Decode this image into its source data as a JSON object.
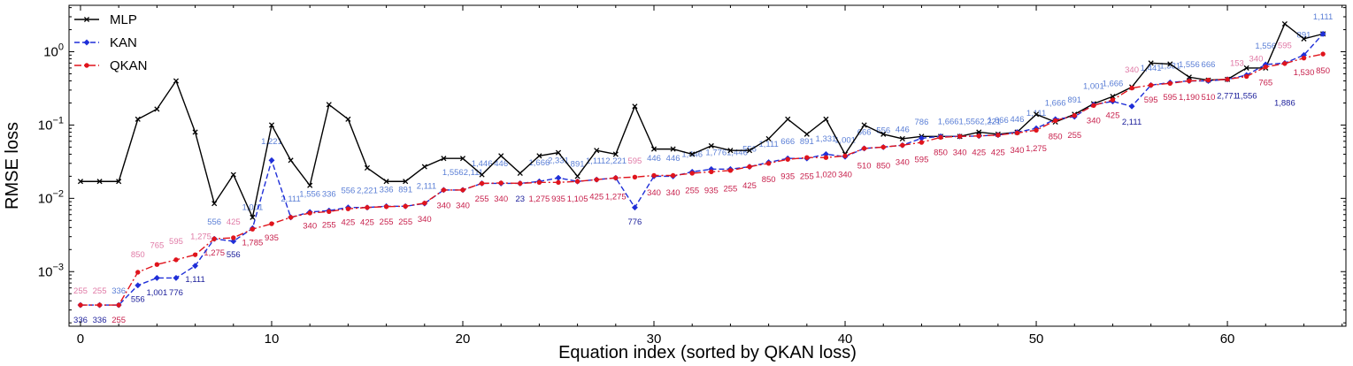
{
  "chart_data": {
    "type": "line",
    "xlabel": "Equation index (sorted by QKAN loss)",
    "ylabel": "RMSE loss",
    "yscale": "log",
    "xlim": [
      -0.6,
      66.2
    ],
    "ylim": [
      0.00018,
      4.3
    ],
    "xticks": [
      0,
      10,
      20,
      30,
      40,
      50,
      60
    ],
    "xtick_labels": [
      "0",
      "10",
      "20",
      "30",
      "40",
      "50",
      "60"
    ],
    "yticks": [
      0.001,
      0.01,
      0.1,
      1
    ],
    "ytick_labels": [
      "10^-3",
      "10^-2",
      "10^-1",
      "10^0"
    ],
    "legend_position": "top-left",
    "series": [
      {
        "name": "MLP",
        "color": "#000000",
        "dash": "",
        "marker": "x",
        "values": [
          0.017,
          0.017,
          0.017,
          0.12,
          0.165,
          0.4,
          0.08,
          0.0085,
          0.021,
          0.0055,
          0.1,
          0.033,
          0.015,
          0.19,
          0.12,
          0.026,
          0.017,
          0.017,
          0.027,
          0.035,
          0.035,
          0.021,
          0.038,
          0.022,
          0.038,
          0.042,
          0.02,
          0.045,
          0.04,
          0.18,
          0.047,
          0.047,
          0.04,
          0.052,
          0.045,
          0.045,
          0.065,
          0.12,
          0.075,
          0.12,
          0.04,
          0.1,
          0.075,
          0.065,
          0.07,
          0.07,
          0.07,
          0.08,
          0.075,
          0.08,
          0.14,
          0.11,
          0.14,
          0.195,
          0.245,
          0.33,
          0.7,
          0.68,
          0.45,
          0.41,
          0.42,
          0.6,
          0.6,
          2.4,
          1.5,
          1.75
        ]
      },
      {
        "name": "KAN",
        "color": "#1f2fd8",
        "dash": "6 3",
        "marker": "diamond",
        "values": [
          0.00035,
          0.00035,
          0.00035,
          0.00065,
          0.00082,
          0.00082,
          0.0012,
          0.0028,
          0.0026,
          0.0039,
          0.033,
          0.0055,
          0.0065,
          0.0068,
          0.0075,
          0.0075,
          0.0078,
          0.0078,
          0.0085,
          0.013,
          0.013,
          0.016,
          0.016,
          0.016,
          0.017,
          0.019,
          0.017,
          0.018,
          0.019,
          0.0075,
          0.02,
          0.02,
          0.023,
          0.025,
          0.025,
          0.027,
          0.031,
          0.035,
          0.035,
          0.04,
          0.037,
          0.048,
          0.05,
          0.053,
          0.066,
          0.07,
          0.07,
          0.071,
          0.073,
          0.08,
          0.09,
          0.12,
          0.13,
          0.19,
          0.21,
          0.18,
          0.35,
          0.38,
          0.4,
          0.4,
          0.42,
          0.48,
          0.67,
          0.7,
          0.9,
          1.75
        ]
      },
      {
        "name": "QKAN",
        "color": "#e0141c",
        "dash": "8 3 2 3",
        "marker": "circle",
        "values": [
          0.00035,
          0.00035,
          0.00035,
          0.00098,
          0.00125,
          0.00145,
          0.0017,
          0.0028,
          0.0029,
          0.0038,
          0.0045,
          0.0055,
          0.0063,
          0.0066,
          0.0072,
          0.0075,
          0.0077,
          0.0078,
          0.0086,
          0.013,
          0.013,
          0.016,
          0.0162,
          0.016,
          0.0165,
          0.0165,
          0.017,
          0.018,
          0.019,
          0.0195,
          0.0205,
          0.0205,
          0.022,
          0.023,
          0.024,
          0.027,
          0.03,
          0.034,
          0.036,
          0.036,
          0.038,
          0.048,
          0.05,
          0.053,
          0.058,
          0.068,
          0.07,
          0.071,
          0.073,
          0.078,
          0.085,
          0.115,
          0.135,
          0.185,
          0.22,
          0.32,
          0.35,
          0.37,
          0.4,
          0.41,
          0.42,
          0.46,
          0.62,
          0.69,
          0.82,
          0.93
        ]
      }
    ],
    "annotations": [
      {
        "text": "255",
        "x": 0,
        "y": 0.00055,
        "color": "#e07aa6"
      },
      {
        "text": "255",
        "x": 1,
        "y": 0.00055,
        "color": "#e07aa6"
      },
      {
        "text": "336",
        "x": 2,
        "y": 0.00055,
        "color": "#5b7fd6"
      },
      {
        "text": "850",
        "x": 3,
        "y": 0.0017,
        "color": "#e07aa6"
      },
      {
        "text": "765",
        "x": 4,
        "y": 0.0023,
        "color": "#e07aa6"
      },
      {
        "text": "595",
        "x": 5,
        "y": 0.0026,
        "color": "#e07aa6"
      },
      {
        "text": "1,275",
        "x": 6.3,
        "y": 0.003,
        "color": "#e07aa6"
      },
      {
        "text": "556",
        "x": 7,
        "y": 0.0048,
        "color": "#5b7fd6"
      },
      {
        "text": "425",
        "x": 8,
        "y": 0.0048,
        "color": "#e07aa6"
      },
      {
        "text": "1,001",
        "x": 9,
        "y": 0.0075,
        "color": "#5b7fd6"
      },
      {
        "text": "1,221",
        "x": 10,
        "y": 0.06,
        "color": "#5b7fd6"
      },
      {
        "text": "2,111",
        "x": 11,
        "y": 0.0098,
        "color": "#5b7fd6"
      },
      {
        "text": "1,556",
        "x": 12,
        "y": 0.0115,
        "color": "#5b7fd6"
      },
      {
        "text": "336",
        "x": 13,
        "y": 0.0115,
        "color": "#5b7fd6"
      },
      {
        "text": "556",
        "x": 14,
        "y": 0.0128,
        "color": "#5b7fd6"
      },
      {
        "text": "2,221",
        "x": 15,
        "y": 0.0128,
        "color": "#5b7fd6"
      },
      {
        "text": "336",
        "x": 16,
        "y": 0.0132,
        "color": "#5b7fd6"
      },
      {
        "text": "891",
        "x": 17,
        "y": 0.0132,
        "color": "#5b7fd6"
      },
      {
        "text": "2,111",
        "x": 18.1,
        "y": 0.0146,
        "color": "#5b7fd6"
      },
      {
        "text": "1,5562,111",
        "x": 20,
        "y": 0.0225,
        "color": "#5b7fd6"
      },
      {
        "text": "1,446",
        "x": 21,
        "y": 0.03,
        "color": "#5b7fd6"
      },
      {
        "text": "446",
        "x": 22,
        "y": 0.03,
        "color": "#5b7fd6"
      },
      {
        "text": "1,666",
        "x": 24,
        "y": 0.0305,
        "color": "#5b7fd6"
      },
      {
        "text": "2,331",
        "x": 25,
        "y": 0.033,
        "color": "#5b7fd6"
      },
      {
        "text": "891",
        "x": 26,
        "y": 0.0295,
        "color": "#5b7fd6"
      },
      {
        "text": "1,1112,221",
        "x": 27.5,
        "y": 0.0325,
        "color": "#5b7fd6"
      },
      {
        "text": "595",
        "x": 29,
        "y": 0.0325,
        "color": "#e07aa6"
      },
      {
        "text": "446",
        "x": 30,
        "y": 0.035,
        "color": "#5b7fd6"
      },
      {
        "text": "446",
        "x": 31,
        "y": 0.035,
        "color": "#5b7fd6"
      },
      {
        "text": "1,446",
        "x": 32,
        "y": 0.04,
        "color": "#5b7fd6"
      },
      {
        "text": "1,7761,446",
        "x": 33.8,
        "y": 0.042,
        "color": "#5b7fd6"
      },
      {
        "text": "556",
        "x": 35,
        "y": 0.047,
        "color": "#5b7fd6"
      },
      {
        "text": "1,111",
        "x": 36,
        "y": 0.055,
        "color": "#5b7fd6"
      },
      {
        "text": "666",
        "x": 37,
        "y": 0.06,
        "color": "#5b7fd6"
      },
      {
        "text": "891",
        "x": 38,
        "y": 0.06,
        "color": "#5b7fd6"
      },
      {
        "text": "1,331",
        "x": 39,
        "y": 0.065,
        "color": "#5b7fd6"
      },
      {
        "text": "1,001",
        "x": 40,
        "y": 0.062,
        "color": "#5b7fd6"
      },
      {
        "text": "666",
        "x": 41,
        "y": 0.08,
        "color": "#5b7fd6"
      },
      {
        "text": "556",
        "x": 42,
        "y": 0.085,
        "color": "#5b7fd6"
      },
      {
        "text": "446",
        "x": 43,
        "y": 0.087,
        "color": "#5b7fd6"
      },
      {
        "text": "786",
        "x": 44,
        "y": 0.11,
        "color": "#5b7fd6"
      },
      {
        "text": "1,6661,5562,221",
        "x": 46.5,
        "y": 0.112,
        "color": "#5b7fd6"
      },
      {
        "text": "1,666",
        "x": 48,
        "y": 0.116,
        "color": "#5b7fd6"
      },
      {
        "text": "446",
        "x": 49,
        "y": 0.12,
        "color": "#5b7fd6"
      },
      {
        "text": "1,111",
        "x": 50,
        "y": 0.145,
        "color": "#5b7fd6"
      },
      {
        "text": "1,666",
        "x": 51,
        "y": 0.2,
        "color": "#5b7fd6"
      },
      {
        "text": "891",
        "x": 52,
        "y": 0.22,
        "color": "#5b7fd6"
      },
      {
        "text": "1,001",
        "x": 53,
        "y": 0.34,
        "color": "#5b7fd6"
      },
      {
        "text": "1,666",
        "x": 54,
        "y": 0.37,
        "color": "#5b7fd6"
      },
      {
        "text": "340",
        "x": 55,
        "y": 0.57,
        "color": "#e07aa6"
      },
      {
        "text": "1,441",
        "x": 56,
        "y": 0.6,
        "color": "#5b7fd6"
      },
      {
        "text": "1,331",
        "x": 57,
        "y": 0.64,
        "color": "#5b7fd6"
      },
      {
        "text": "1,556",
        "x": 58,
        "y": 0.67,
        "color": "#5b7fd6"
      },
      {
        "text": "666",
        "x": 59,
        "y": 0.67,
        "color": "#5b7fd6"
      },
      {
        "text": "153",
        "x": 60.5,
        "y": 0.7,
        "color": "#e07aa6"
      },
      {
        "text": "340",
        "x": 61.5,
        "y": 0.8,
        "color": "#e07aa6"
      },
      {
        "text": "1,556",
        "x": 62,
        "y": 1.2,
        "color": "#5b7fd6"
      },
      {
        "text": "595",
        "x": 63,
        "y": 1.22,
        "color": "#e07aa6"
      },
      {
        "text": "891",
        "x": 64,
        "y": 1.7,
        "color": "#5b7fd6"
      },
      {
        "text": "1,111",
        "x": 65,
        "y": 3.0,
        "color": "#5b7fd6"
      },
      {
        "text": "336",
        "x": 0,
        "y": 0.00022,
        "color": "#1a1d9a"
      },
      {
        "text": "336",
        "x": 1,
        "y": 0.00022,
        "color": "#1a1d9a"
      },
      {
        "text": "255",
        "x": 2,
        "y": 0.00022,
        "color": "#c71f4b"
      },
      {
        "text": "556",
        "x": 3,
        "y": 0.00042,
        "color": "#1a1d9a"
      },
      {
        "text": "1,001",
        "x": 4,
        "y": 0.00052,
        "color": "#1a1d9a"
      },
      {
        "text": "776",
        "x": 5,
        "y": 0.00052,
        "color": "#1a1d9a"
      },
      {
        "text": "1,111",
        "x": 6,
        "y": 0.00078,
        "color": "#1a1d9a"
      },
      {
        "text": "1,275",
        "x": 7,
        "y": 0.0018,
        "color": "#c71f4b"
      },
      {
        "text": "556",
        "x": 8,
        "y": 0.0017,
        "color": "#1a1d9a"
      },
      {
        "text": "1,785",
        "x": 9,
        "y": 0.0025,
        "color": "#c71f4b"
      },
      {
        "text": "935",
        "x": 10,
        "y": 0.0029,
        "color": "#c71f4b"
      },
      {
        "text": "340",
        "x": 12,
        "y": 0.0042,
        "color": "#c71f4b"
      },
      {
        "text": "255",
        "x": 13,
        "y": 0.0043,
        "color": "#c71f4b"
      },
      {
        "text": "425",
        "x": 14,
        "y": 0.0047,
        "color": "#c71f4b"
      },
      {
        "text": "425",
        "x": 15,
        "y": 0.0047,
        "color": "#c71f4b"
      },
      {
        "text": "255",
        "x": 16,
        "y": 0.0048,
        "color": "#c71f4b"
      },
      {
        "text": "255",
        "x": 17,
        "y": 0.0048,
        "color": "#c71f4b"
      },
      {
        "text": "340",
        "x": 18,
        "y": 0.0052,
        "color": "#c71f4b"
      },
      {
        "text": "340",
        "x": 19,
        "y": 0.008,
        "color": "#c71f4b"
      },
      {
        "text": "340",
        "x": 20,
        "y": 0.008,
        "color": "#c71f4b"
      },
      {
        "text": "255",
        "x": 21,
        "y": 0.0098,
        "color": "#c71f4b"
      },
      {
        "text": "340",
        "x": 22,
        "y": 0.0098,
        "color": "#c71f4b"
      },
      {
        "text": "23",
        "x": 23,
        "y": 0.0098,
        "color": "#1a1d9a"
      },
      {
        "text": "1,275",
        "x": 24,
        "y": 0.0098,
        "color": "#c71f4b"
      },
      {
        "text": "935",
        "x": 25,
        "y": 0.0098,
        "color": "#c71f4b"
      },
      {
        "text": "1,105",
        "x": 26,
        "y": 0.0098,
        "color": "#c71f4b"
      },
      {
        "text": "425",
        "x": 27,
        "y": 0.0105,
        "color": "#c71f4b"
      },
      {
        "text": "1,275",
        "x": 28,
        "y": 0.0105,
        "color": "#c71f4b"
      },
      {
        "text": "776",
        "x": 29,
        "y": 0.0048,
        "color": "#1a1d9a"
      },
      {
        "text": "340",
        "x": 30,
        "y": 0.012,
        "color": "#c71f4b"
      },
      {
        "text": "340",
        "x": 31,
        "y": 0.012,
        "color": "#c71f4b"
      },
      {
        "text": "255",
        "x": 32,
        "y": 0.0128,
        "color": "#c71f4b"
      },
      {
        "text": "935",
        "x": 33,
        "y": 0.0128,
        "color": "#c71f4b"
      },
      {
        "text": "255",
        "x": 34,
        "y": 0.0135,
        "color": "#c71f4b"
      },
      {
        "text": "425",
        "x": 35,
        "y": 0.0148,
        "color": "#c71f4b"
      },
      {
        "text": "850",
        "x": 36,
        "y": 0.018,
        "color": "#c71f4b"
      },
      {
        "text": "935",
        "x": 37,
        "y": 0.02,
        "color": "#c71f4b"
      },
      {
        "text": "255",
        "x": 38,
        "y": 0.02,
        "color": "#c71f4b"
      },
      {
        "text": "1,020",
        "x": 39,
        "y": 0.021,
        "color": "#c71f4b"
      },
      {
        "text": "340",
        "x": 40,
        "y": 0.021,
        "color": "#c71f4b"
      },
      {
        "text": "510",
        "x": 41,
        "y": 0.028,
        "color": "#c71f4b"
      },
      {
        "text": "850",
        "x": 42,
        "y": 0.028,
        "color": "#c71f4b"
      },
      {
        "text": "340",
        "x": 43,
        "y": 0.031,
        "color": "#c71f4b"
      },
      {
        "text": "595",
        "x": 44,
        "y": 0.034,
        "color": "#c71f4b"
      },
      {
        "text": "850",
        "x": 45,
        "y": 0.042,
        "color": "#c71f4b"
      },
      {
        "text": "340",
        "x": 46,
        "y": 0.042,
        "color": "#c71f4b"
      },
      {
        "text": "425",
        "x": 47,
        "y": 0.042,
        "color": "#c71f4b"
      },
      {
        "text": "425",
        "x": 48,
        "y": 0.042,
        "color": "#c71f4b"
      },
      {
        "text": "340",
        "x": 49,
        "y": 0.045,
        "color": "#c71f4b"
      },
      {
        "text": "1,275",
        "x": 50,
        "y": 0.048,
        "color": "#c71f4b"
      },
      {
        "text": "850",
        "x": 51,
        "y": 0.07,
        "color": "#c71f4b"
      },
      {
        "text": "255",
        "x": 52,
        "y": 0.073,
        "color": "#c71f4b"
      },
      {
        "text": "340",
        "x": 53,
        "y": 0.115,
        "color": "#c71f4b"
      },
      {
        "text": "425",
        "x": 54,
        "y": 0.135,
        "color": "#c71f4b"
      },
      {
        "text": "2,111",
        "x": 55,
        "y": 0.11,
        "color": "#1a1d9a"
      },
      {
        "text": "595",
        "x": 56,
        "y": 0.22,
        "color": "#c71f4b"
      },
      {
        "text": "595",
        "x": 57,
        "y": 0.24,
        "color": "#c71f4b"
      },
      {
        "text": "1,190",
        "x": 58,
        "y": 0.24,
        "color": "#c71f4b"
      },
      {
        "text": "510",
        "x": 59,
        "y": 0.24,
        "color": "#c71f4b"
      },
      {
        "text": "2,771",
        "x": 60,
        "y": 0.25,
        "color": "#1a1d9a"
      },
      {
        "text": "1,556",
        "x": 61,
        "y": 0.25,
        "color": "#1a1d9a"
      },
      {
        "text": "765",
        "x": 62,
        "y": 0.38,
        "color": "#c71f4b"
      },
      {
        "text": "1,886",
        "x": 63,
        "y": 0.2,
        "color": "#1a1d9a"
      },
      {
        "text": "1,530",
        "x": 64,
        "y": 0.52,
        "color": "#c71f4b"
      },
      {
        "text": "850",
        "x": 65,
        "y": 0.55,
        "color": "#c71f4b"
      }
    ]
  }
}
